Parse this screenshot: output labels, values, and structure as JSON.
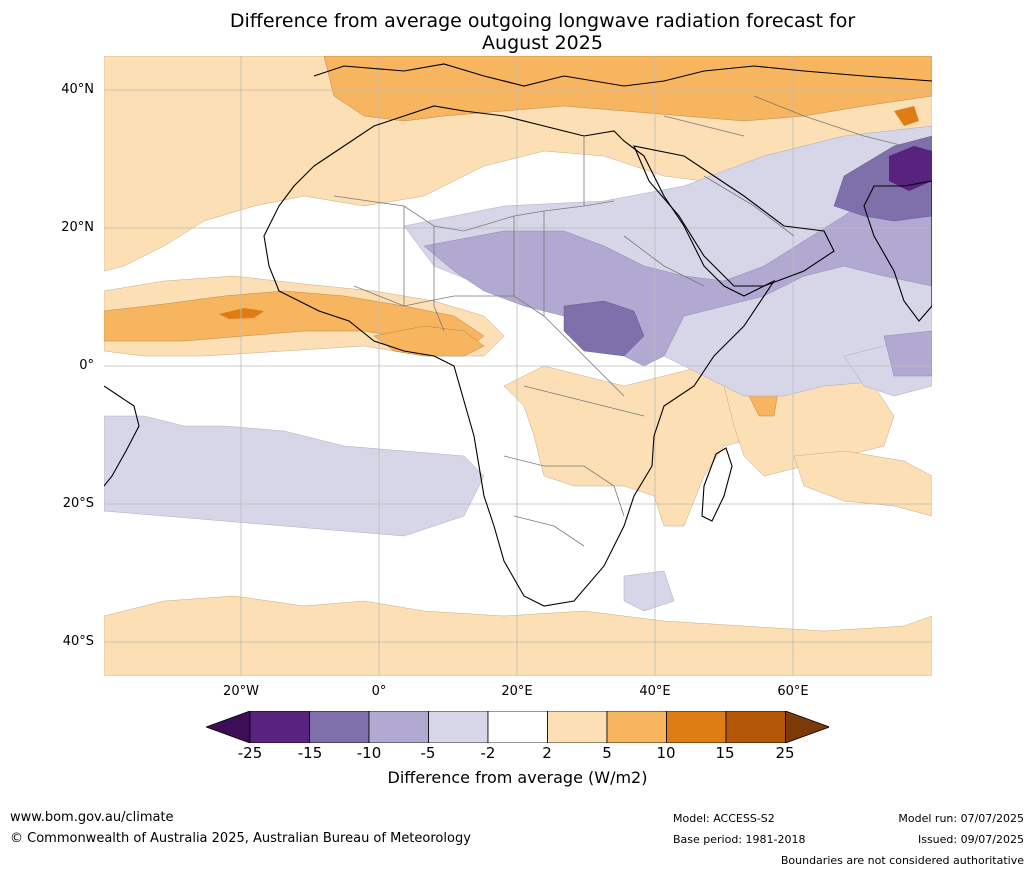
{
  "title": {
    "line1": "Difference from average outgoing longwave radiation forecast for",
    "line2": "August 2025"
  },
  "map": {
    "latitude_labels": [
      "40°N",
      "20°N",
      "0°",
      "20°S",
      "40°S"
    ],
    "longitude_labels": [
      "20°W",
      "0°",
      "20°E",
      "40°E",
      "60°E"
    ],
    "gridlines": true,
    "region": "Africa"
  },
  "colorbar": {
    "tick_labels": [
      "-25",
      "-15",
      "-10",
      "-5",
      "-2",
      "2",
      "5",
      "10",
      "15",
      "25"
    ],
    "colors": [
      "#3d0e55",
      "#57237f",
      "#7f6faa",
      "#b1a9d1",
      "#d7d6e9",
      "#ffffff",
      "#fddfb5",
      "#f8b560",
      "#dd7d14",
      "#b35707",
      "#7b3a08"
    ],
    "label": "Difference from average (W/m2)"
  },
  "footer": {
    "website": "www.bom.gov.au/climate",
    "copyright": "© Commonwealth of Australia 2025, Australian Bureau of Meteorology",
    "model": "Model: ACCESS-S2",
    "base_period": "Base period: 1981-2018",
    "model_run": "Model run: 07/07/2025",
    "issued": "Issued: 09/07/2025",
    "disclaimer": "Boundaries are not considered authoritative"
  }
}
